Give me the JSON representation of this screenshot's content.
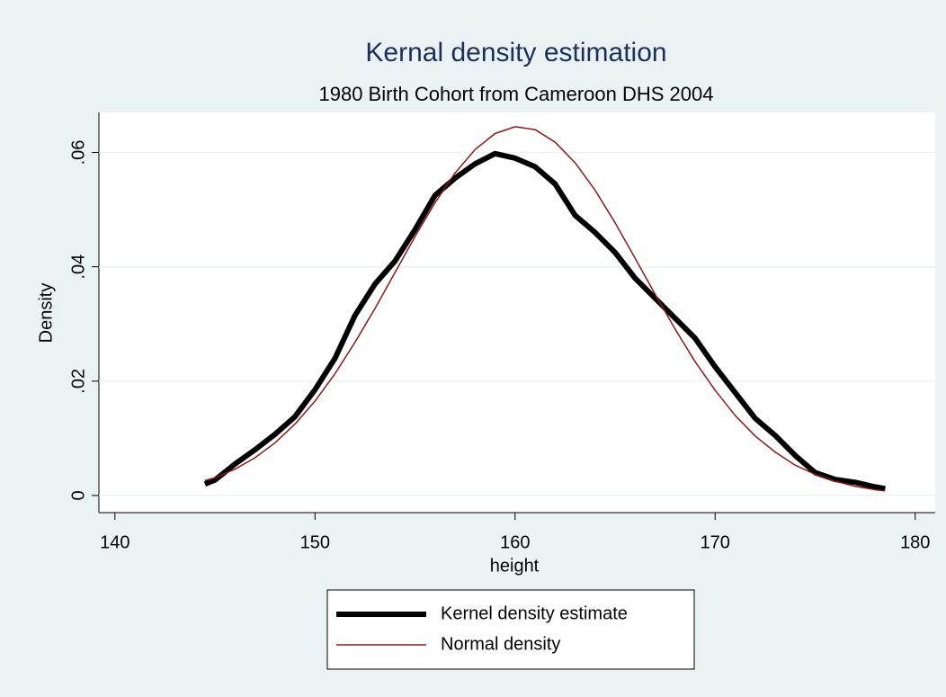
{
  "chart_data": {
    "type": "line",
    "title": "Kernal density estimation",
    "subtitle": "1980 Birth Cohort from Cameroon DHS 2004",
    "xlabel": "height",
    "ylabel": "Density",
    "x": [
      144.5,
      145,
      146,
      147,
      148,
      149,
      150,
      151,
      152,
      153,
      154,
      155,
      156,
      157,
      158,
      159,
      160,
      161,
      162,
      163,
      164,
      165,
      166,
      167,
      168,
      169,
      170,
      171,
      172,
      173,
      174,
      175,
      176,
      177,
      178,
      178.5
    ],
    "series": [
      {
        "name": "Kernel density estimate",
        "color": "#000000",
        "width": 6,
        "values": [
          0.002,
          0.0027,
          0.0055,
          0.008,
          0.0107,
          0.0138,
          0.0185,
          0.024,
          0.0315,
          0.037,
          0.041,
          0.0465,
          0.0525,
          0.0555,
          0.058,
          0.0598,
          0.059,
          0.0575,
          0.0545,
          0.049,
          0.046,
          0.0425,
          0.038,
          0.0345,
          0.031,
          0.0275,
          0.0225,
          0.018,
          0.0135,
          0.0105,
          0.007,
          0.004,
          0.0028,
          0.0023,
          0.0015,
          0.0012
        ]
      },
      {
        "name": "Normal density",
        "color": "#8b1a1a",
        "width": 1.5,
        "values": [
          0.0026,
          0.0031,
          0.0046,
          0.0066,
          0.0092,
          0.0125,
          0.0165,
          0.0213,
          0.0268,
          0.0327,
          0.039,
          0.0453,
          0.0512,
          0.0564,
          0.0605,
          0.0633,
          0.0645,
          0.064,
          0.0618,
          0.0582,
          0.0534,
          0.0477,
          0.0415,
          0.0352,
          0.0291,
          0.0234,
          0.0184,
          0.014,
          0.0104,
          0.0076,
          0.0053,
          0.0037,
          0.0025,
          0.0016,
          0.001,
          0.0008
        ]
      }
    ],
    "xlim": [
      139.2,
      181
    ],
    "xticks": [
      140,
      150,
      160,
      170,
      180
    ],
    "ylim": [
      -0.003,
      0.067
    ],
    "yticks": [
      0,
      {
        "value": 0.02,
        "label": ".02"
      },
      {
        "value": 0.04,
        "label": ".04"
      },
      {
        "value": 0.06,
        "label": ".06"
      }
    ],
    "grid": true,
    "legend": "bottom"
  }
}
